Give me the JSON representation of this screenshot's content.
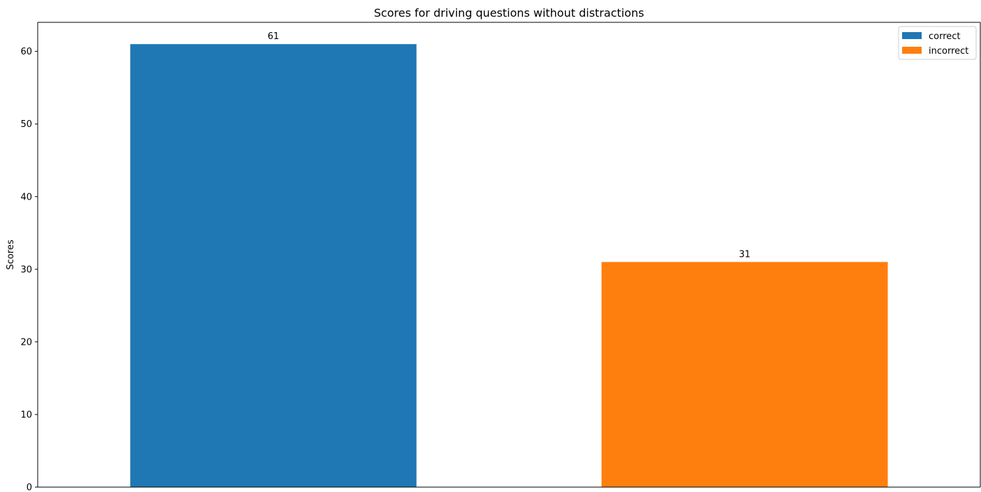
{
  "chart_data": {
    "type": "bar",
    "title": "Scores for driving questions without distractions",
    "xlabel": "",
    "ylabel": "Scores",
    "ylim": [
      0,
      64
    ],
    "yticks": [
      0,
      10,
      20,
      30,
      40,
      50,
      60
    ],
    "grid": false,
    "legend_position": "top-right",
    "series": [
      {
        "name": "correct",
        "value": 61,
        "color": "#1f77b4",
        "data_label": "61"
      },
      {
        "name": "incorrect",
        "value": 31,
        "color": "#ff7f0e",
        "data_label": "31"
      }
    ]
  }
}
